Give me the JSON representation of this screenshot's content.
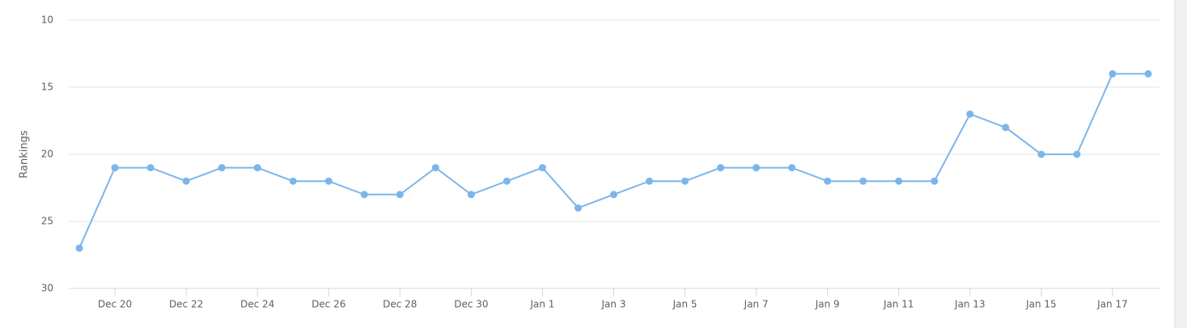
{
  "chart_data": {
    "type": "line",
    "y_label": "Rankings",
    "categories": [
      null,
      "Dec 20",
      null,
      "Dec 22",
      null,
      "Dec 24",
      null,
      "Dec 26",
      null,
      "Dec 28",
      null,
      "Dec 30",
      null,
      "Jan 1",
      null,
      "Jan 3",
      null,
      "Jan 5",
      null,
      "Jan 7",
      null,
      "Jan 9",
      null,
      "Jan 11",
      null,
      "Jan 13",
      null,
      "Jan 15",
      null,
      "Jan 17",
      null
    ],
    "series": [
      {
        "name": "Rankings",
        "color": "#7cb5ec",
        "values": [
          27,
          21,
          21,
          22,
          21,
          21,
          22,
          22,
          23,
          23,
          21,
          23,
          22,
          21,
          24,
          23,
          22,
          22,
          21,
          21,
          21,
          22,
          22,
          22,
          22,
          17,
          18,
          20,
          20,
          14,
          14
        ]
      }
    ],
    "ylim": [
      10,
      30
    ],
    "yticks": [
      10,
      15,
      20,
      25,
      30
    ],
    "y_reversed": true,
    "grid": true,
    "legend": false
  }
}
